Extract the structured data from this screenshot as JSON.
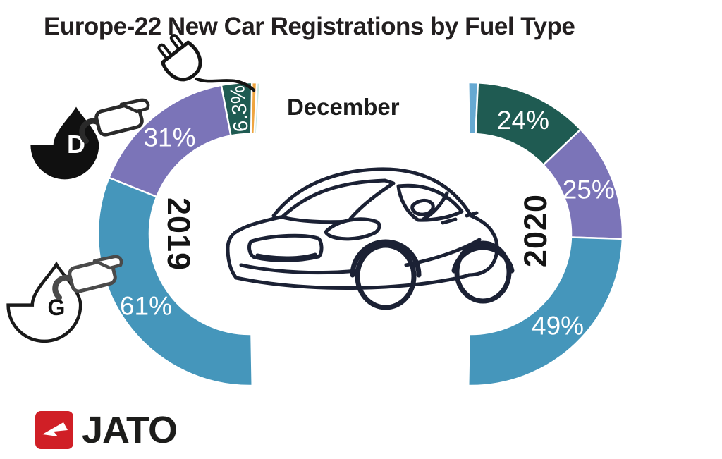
{
  "title": "Europe-22 New Car Registrations by Fuel Type",
  "month_label": "December",
  "brand": {
    "logo_text": "JATO"
  },
  "icons": {
    "diesel_letter": "D",
    "gasoline_letter": "G"
  },
  "legend": [
    {
      "fuel": "Electrified",
      "icon": "electric-plug"
    },
    {
      "fuel": "Diesel",
      "icon": "diesel-pump"
    },
    {
      "fuel": "Gasoline",
      "icon": "gasoline-pump"
    }
  ],
  "chart_data": {
    "type": "pie",
    "title": "Europe-22 New Car Registrations by Fuel Type",
    "subtitle": "December",
    "unit": "% of new car registrations",
    "legend_position": "icons beside segments",
    "rings": [
      {
        "year": "2019",
        "side": "left",
        "segments": [
          {
            "name": "other-minor",
            "value": 0.7,
            "label": "",
            "color": "#CBE7E0"
          },
          {
            "name": "other",
            "value": 1.0,
            "label": "",
            "color": "#EFA53F"
          },
          {
            "name": "electrified",
            "value": 6.3,
            "label": "6.3%",
            "color": "#1F5B52"
          },
          {
            "name": "diesel",
            "value": 31,
            "label": "31%",
            "color": "#7B74B8"
          },
          {
            "name": "gasoline",
            "value": 61,
            "label": "61%",
            "color": "#4596BB"
          }
        ]
      },
      {
        "year": "2020",
        "side": "right",
        "segments": [
          {
            "name": "other",
            "value": 2,
            "label": "",
            "color": "#66A9D2"
          },
          {
            "name": "electrified",
            "value": 24,
            "label": "24%",
            "color": "#1F5B52"
          },
          {
            "name": "diesel",
            "value": 25,
            "label": "25%",
            "color": "#7B74B8"
          },
          {
            "name": "gasoline",
            "value": 49,
            "label": "49%",
            "color": "#4596BB"
          }
        ]
      }
    ]
  }
}
